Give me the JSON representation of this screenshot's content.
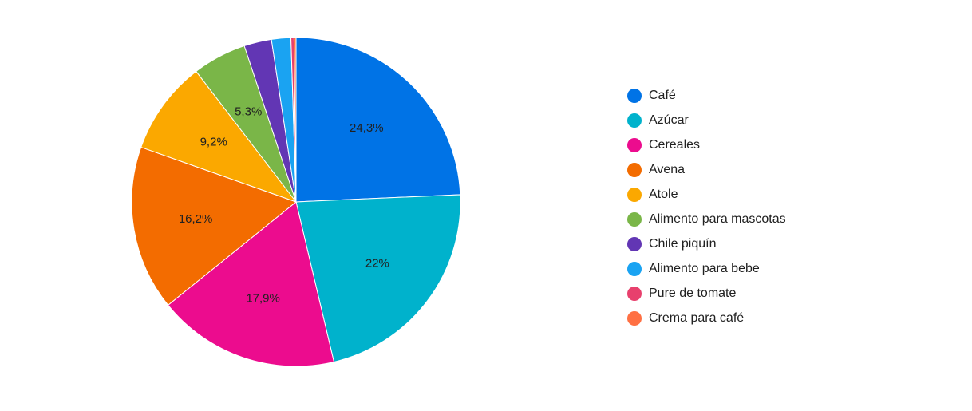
{
  "chart_data": {
    "type": "pie",
    "title": "",
    "legend_position": "right",
    "slices": [
      {
        "label": "Café",
        "value": 24.3,
        "display": "24,3%",
        "color": "#0073e6"
      },
      {
        "label": "Azúcar",
        "value": 22.0,
        "display": "22%",
        "color": "#00b2cc"
      },
      {
        "label": "Cereales",
        "value": 17.9,
        "display": "17,9%",
        "color": "#ec0c8e"
      },
      {
        "label": "Avena",
        "value": 16.2,
        "display": "16,2%",
        "color": "#f36c00"
      },
      {
        "label": "Atole",
        "value": 9.2,
        "display": "9,2%",
        "color": "#fba800"
      },
      {
        "label": "Alimento para mascotas",
        "value": 5.3,
        "display": "5,3%",
        "color": "#7ab648"
      },
      {
        "label": "Chile piquín",
        "value": 2.7,
        "display": "",
        "color": "#6236b4"
      },
      {
        "label": "Alimento para bebe",
        "value": 1.9,
        "display": "",
        "color": "#1aa3f2"
      },
      {
        "label": "Pure de tomate",
        "value": 0.3,
        "display": "",
        "color": "#e8406d"
      },
      {
        "label": "Crema para café",
        "value": 0.2,
        "display": "",
        "color": "#ff7043"
      }
    ]
  }
}
